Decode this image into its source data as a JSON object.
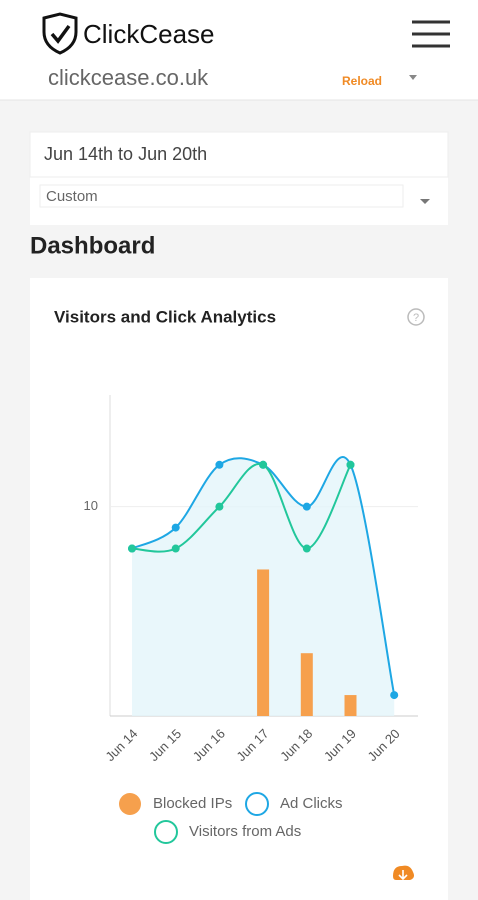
{
  "header": {
    "brand": "ClickCease",
    "domain": "clickcease.co.uk",
    "reload": "Reload"
  },
  "date_range": {
    "label": "Jun 14th to Jun 20th",
    "preset": "Custom"
  },
  "page_title": "Dashboard",
  "chart_data": {
    "type": "line",
    "title": "Visitors and Click Analytics",
    "categories": [
      "Jun 14",
      "Jun 15",
      "Jun 16",
      "Jun 17",
      "Jun 18",
      "Jun 19",
      "Jun 20"
    ],
    "series": [
      {
        "name": "Blocked IPs",
        "type": "bar",
        "color": "#f6a04d",
        "values": [
          0,
          0,
          0,
          7,
          3,
          1,
          0
        ]
      },
      {
        "name": "Ad Clicks",
        "type": "line",
        "area": true,
        "color": "#1ea7e4",
        "values": [
          8,
          9,
          12,
          12,
          10,
          12,
          1
        ]
      },
      {
        "name": "Visitors from Ads",
        "type": "line",
        "color": "#22c79b",
        "values": [
          8,
          8,
          10,
          12,
          8,
          12,
          null
        ]
      }
    ],
    "ylim": [
      0,
      15
    ],
    "yticks": [
      10
    ],
    "grid": true
  }
}
